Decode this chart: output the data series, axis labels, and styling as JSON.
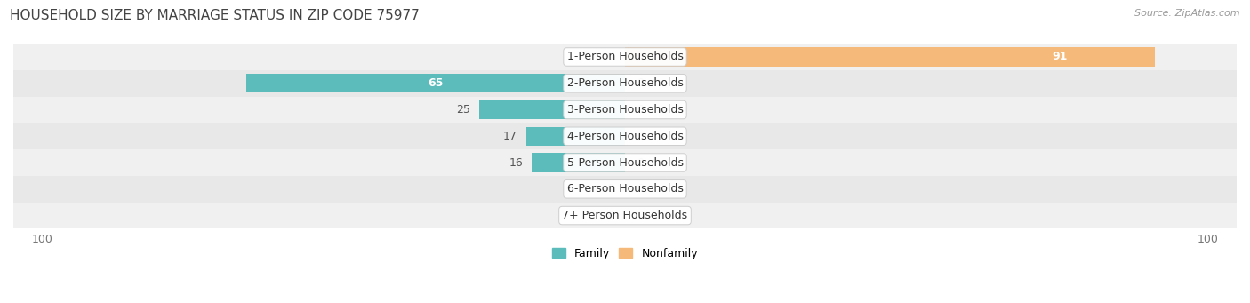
{
  "title": "HOUSEHOLD SIZE BY MARRIAGE STATUS IN ZIP CODE 75977",
  "source": "Source: ZipAtlas.com",
  "categories": [
    "7+ Person Households",
    "6-Person Households",
    "5-Person Households",
    "4-Person Households",
    "3-Person Households",
    "2-Person Households",
    "1-Person Households"
  ],
  "family_values": [
    0,
    0,
    16,
    17,
    25,
    65,
    0
  ],
  "nonfamily_values": [
    0,
    0,
    0,
    0,
    0,
    0,
    91
  ],
  "family_color": "#5bbcbb",
  "nonfamily_color": "#f5b97a",
  "bar_height": 0.72,
  "xlim_min": -105,
  "xlim_max": 105,
  "row_colors": [
    "#f0f0f0",
    "#e8e8e8"
  ],
  "title_fontsize": 11,
  "source_fontsize": 8,
  "label_fontsize": 9,
  "tick_fontsize": 9,
  "legend_fontsize": 9
}
